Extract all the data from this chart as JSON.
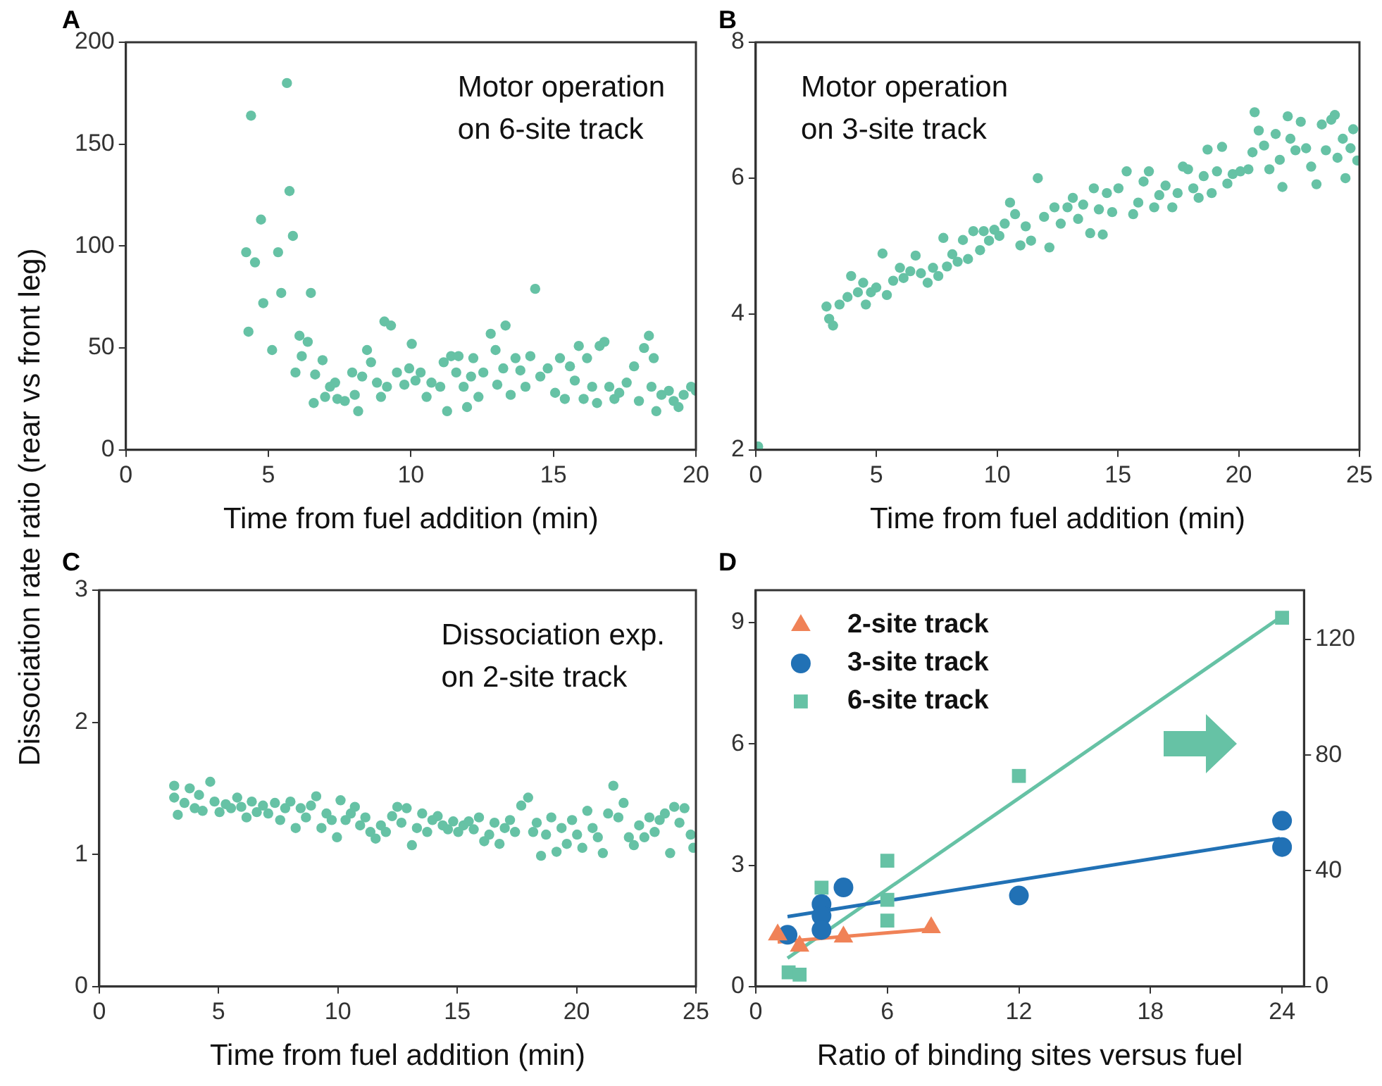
{
  "chart_data": [
    {
      "type": "scatter",
      "title": "A",
      "xlabel": "Time from fuel addition (min)",
      "ylabel": "Dissociation rate ratio (rear vs front leg)",
      "annotations": [
        "Motor operation\non 6-site track"
      ],
      "color": "#66c2a5",
      "marker": "circle",
      "xlim": [
        0,
        20
      ],
      "ylim": [
        0,
        200
      ],
      "xticks": [
        0,
        5,
        10,
        15,
        20
      ],
      "yticks": [
        0,
        50,
        100,
        150,
        200
      ],
      "x": [
        4.22,
        4.39,
        4.3,
        4.53,
        4.74,
        4.82,
        5.13,
        5.34,
        5.45,
        5.65,
        5.74,
        5.86,
        5.95,
        6.09,
        6.17,
        6.38,
        6.49,
        6.64,
        6.59,
        6.9,
        6.99,
        7.16,
        7.34,
        7.42,
        7.68,
        7.94,
        8.03,
        8.15,
        8.29,
        8.46,
        8.6,
        8.81,
        8.95,
        9.07,
        9.3,
        9.16,
        9.51,
        9.77,
        9.94,
        10.03,
        10.16,
        10.34,
        10.55,
        10.72,
        11.03,
        11.15,
        11.27,
        11.41,
        11.59,
        11.67,
        11.85,
        11.97,
        12.11,
        12.19,
        12.37,
        12.54,
        12.8,
        12.97,
        13.03,
        13.24,
        13.32,
        13.5,
        13.67,
        13.84,
        14.02,
        14.19,
        14.36,
        14.54,
        14.8,
        15.06,
        15.23,
        15.4,
        15.58,
        15.75,
        15.89,
        16.06,
        16.18,
        16.36,
        16.53,
        16.62,
        16.79,
        16.96,
        17.14,
        17.31,
        17.57,
        17.83,
        18.0,
        18.18,
        18.35,
        18.44,
        18.52,
        18.61,
        18.79,
        19.05,
        19.22,
        19.39,
        19.57,
        19.83,
        20.0
      ],
      "values": [
        97,
        164,
        58,
        92,
        113,
        72,
        49,
        97,
        77,
        180,
        127,
        105,
        38,
        56,
        46,
        53,
        77,
        37,
        23,
        44,
        26,
        31,
        33,
        25,
        24,
        38,
        27,
        19,
        36,
        49,
        43,
        33,
        26,
        63,
        61,
        31,
        38,
        32,
        40,
        52,
        34,
        38,
        26,
        33,
        31,
        43,
        19,
        46,
        38,
        46,
        31,
        21,
        36,
        45,
        26,
        38,
        57,
        49,
        32,
        40,
        61,
        27,
        45,
        39,
        31,
        46,
        79,
        36,
        40,
        28,
        45,
        25,
        41,
        34,
        51,
        25,
        45,
        31,
        23,
        51,
        53,
        31,
        25,
        28,
        33,
        41,
        24,
        50,
        56,
        31,
        45,
        19,
        27,
        29,
        24,
        21,
        27,
        31,
        29
      ]
    },
    {
      "type": "scatter",
      "title": "B",
      "xlabel": "Time from fuel addition (min)",
      "annotations": [
        "Motor operation\non 3-site track"
      ],
      "color": "#66c2a5",
      "marker": "circle",
      "xlim": [
        0,
        25
      ],
      "ylim": [
        2,
        8
      ],
      "xticks": [
        0,
        5,
        10,
        15,
        20,
        25
      ],
      "yticks": [
        2,
        4,
        6,
        8
      ],
      "x": [
        0.1,
        2.93,
        3.04,
        3.2,
        3.47,
        3.8,
        3.95,
        4.23,
        4.45,
        4.56,
        4.77,
        4.99,
        5.25,
        5.43,
        5.69,
        5.97,
        6.12,
        6.4,
        6.62,
        6.84,
        7.12,
        7.34,
        7.56,
        7.77,
        7.92,
        8.14,
        8.36,
        8.58,
        8.79,
        9.01,
        9.29,
        9.44,
        9.66,
        9.88,
        10.09,
        10.31,
        10.53,
        10.74,
        10.96,
        11.18,
        11.4,
        11.68,
        11.94,
        12.16,
        12.37,
        12.63,
        12.91,
        13.13,
        13.35,
        13.56,
        13.85,
        14.0,
        14.21,
        14.37,
        14.54,
        14.76,
        15.02,
        15.36,
        15.63,
        15.84,
        16.06,
        16.28,
        16.5,
        16.71,
        16.97,
        17.25,
        17.47,
        17.69,
        17.9,
        18.12,
        18.34,
        18.55,
        18.71,
        18.88,
        19.1,
        19.31,
        19.53,
        19.75,
        20.07,
        20.4,
        20.57,
        20.66,
        20.83,
        21.05,
        21.27,
        21.53,
        21.7,
        21.81,
        22.03,
        22.14,
        22.35,
        22.57,
        22.79,
        23.0,
        23.22,
        23.44,
        23.61,
        23.83,
        23.98,
        24.09,
        24.31,
        24.42,
        24.63,
        24.74,
        24.91
      ],
      "values": [
        2.05,
        4.11,
        3.93,
        3.83,
        4.14,
        4.25,
        4.56,
        4.32,
        4.46,
        4.14,
        4.32,
        4.39,
        4.89,
        4.28,
        4.49,
        4.68,
        4.53,
        4.63,
        4.86,
        4.6,
        4.46,
        4.68,
        4.56,
        5.12,
        4.7,
        4.88,
        4.77,
        5.09,
        4.81,
        5.22,
        4.94,
        5.22,
        5.08,
        5.24,
        5.15,
        5.33,
        5.64,
        5.47,
        5.01,
        5.29,
        5.08,
        6.0,
        5.43,
        4.98,
        5.57,
        5.33,
        5.57,
        5.71,
        5.4,
        5.61,
        5.19,
        5.85,
        5.54,
        5.17,
        5.78,
        5.5,
        5.85,
        6.1,
        5.47,
        5.64,
        5.95,
        6.1,
        5.57,
        5.75,
        5.89,
        5.57,
        5.78,
        6.17,
        6.13,
        5.85,
        5.71,
        6.03,
        6.42,
        5.78,
        6.1,
        6.46,
        5.92,
        6.06,
        6.1,
        6.13,
        6.38,
        6.97,
        6.7,
        6.48,
        6.13,
        6.65,
        6.27,
        5.87,
        6.91,
        6.58,
        6.41,
        6.83,
        6.44,
        6.17,
        5.91,
        6.79,
        6.41,
        6.86,
        6.93,
        6.3,
        6.58,
        6.0,
        6.44,
        6.72,
        6.26
      ]
    },
    {
      "type": "scatter",
      "title": "C",
      "xlabel": "Time from fuel addition (min)",
      "annotations": [
        "Dissociation exp.\non 2-site track"
      ],
      "color": "#66c2a5",
      "marker": "circle",
      "xlim": [
        0,
        25
      ],
      "ylim": [
        0,
        3
      ],
      "xticks": [
        0,
        5,
        10,
        15,
        20,
        25
      ],
      "yticks": [
        0,
        1,
        2,
        3
      ],
      "x": [
        3.14,
        3.14,
        3.29,
        3.57,
        3.79,
        4.0,
        4.18,
        4.33,
        4.65,
        4.83,
        5.04,
        5.3,
        5.52,
        5.78,
        5.95,
        6.17,
        6.39,
        6.6,
        6.86,
        7.08,
        7.36,
        7.58,
        7.79,
        8.01,
        8.23,
        8.44,
        8.66,
        8.87,
        9.09,
        9.31,
        9.52,
        9.74,
        9.96,
        10.11,
        10.32,
        10.54,
        10.71,
        10.93,
        11.15,
        11.36,
        11.58,
        11.8,
        12.01,
        12.27,
        12.49,
        12.66,
        12.88,
        13.1,
        13.31,
        13.53,
        13.74,
        13.96,
        14.18,
        14.39,
        14.61,
        14.83,
        15.04,
        15.26,
        15.48,
        15.69,
        15.91,
        16.13,
        16.34,
        16.56,
        16.77,
        16.99,
        17.21,
        17.42,
        17.68,
        17.97,
        18.18,
        18.33,
        18.51,
        18.72,
        18.94,
        19.16,
        19.37,
        19.59,
        19.81,
        20.02,
        20.24,
        20.45,
        20.67,
        20.89,
        21.1,
        21.32,
        21.54,
        21.75,
        21.97,
        22.19,
        22.4,
        22.62,
        22.84,
        23.05,
        23.27,
        23.48,
        23.7,
        23.92,
        24.09,
        24.31,
        24.52,
        24.78,
        24.89
      ],
      "values": [
        1.52,
        1.43,
        1.3,
        1.39,
        1.5,
        1.35,
        1.45,
        1.33,
        1.55,
        1.4,
        1.32,
        1.38,
        1.35,
        1.43,
        1.36,
        1.28,
        1.4,
        1.32,
        1.37,
        1.31,
        1.39,
        1.26,
        1.35,
        1.4,
        1.2,
        1.35,
        1.28,
        1.37,
        1.44,
        1.2,
        1.31,
        1.26,
        1.13,
        1.41,
        1.26,
        1.31,
        1.36,
        1.22,
        1.28,
        1.17,
        1.12,
        1.22,
        1.17,
        1.29,
        1.36,
        1.24,
        1.35,
        1.07,
        1.2,
        1.31,
        1.17,
        1.26,
        1.29,
        1.22,
        1.19,
        1.25,
        1.17,
        1.22,
        1.25,
        1.19,
        1.28,
        1.1,
        1.15,
        1.24,
        1.08,
        1.2,
        1.26,
        1.17,
        1.37,
        1.43,
        1.17,
        1.24,
        0.99,
        1.15,
        1.28,
        1.02,
        1.2,
        1.08,
        1.26,
        1.15,
        1.05,
        1.33,
        1.2,
        1.13,
        1.01,
        1.31,
        1.52,
        1.28,
        1.39,
        1.13,
        1.07,
        1.22,
        1.13,
        1.28,
        1.17,
        1.26,
        1.31,
        1.01,
        1.36,
        1.24,
        1.35,
        1.15,
        1.05
      ]
    },
    {
      "type": "scatter",
      "title": "D",
      "xlabel": "Ratio of binding sites versus fuel",
      "legend": "top left",
      "xlim": [
        0,
        25
      ],
      "ylim": [
        0,
        9.8
      ],
      "y2lim": [
        0,
        137
      ],
      "xticks": [
        0,
        6,
        12,
        18,
        24
      ],
      "yticks": [
        0,
        3,
        6,
        9
      ],
      "y2ticks": [
        0,
        40,
        80,
        120
      ],
      "series": [
        {
          "name": "2-site track",
          "color": "#f08257",
          "marker": "triangle",
          "x": [
            1,
            2,
            4,
            8
          ],
          "values": [
            1.28,
            1.0,
            1.23,
            1.46
          ]
        },
        {
          "name": "3-site track",
          "color": "#2171b5",
          "marker": "circle",
          "x": [
            1.45,
            3,
            3,
            3,
            4,
            12,
            24,
            24
          ],
          "values": [
            1.28,
            2.04,
            1.75,
            1.4,
            2.45,
            2.25,
            4.1,
            3.45
          ]
        },
        {
          "name": "6-site track",
          "color": "#66c2a5",
          "marker": "square",
          "axis": "y2",
          "x": [
            1.5,
            2,
            3,
            6,
            6,
            6,
            12,
            24
          ],
          "values": [
            4.9,
            4.1,
            34.2,
            43.5,
            30,
            22.8,
            72.8,
            127.5
          ]
        },
        {
          "type": "line",
          "color": "#f08257",
          "marker": "none",
          "x": [
            1,
            8
          ],
          "values": [
            1.1,
            1.42
          ]
        },
        {
          "type": "line",
          "color": "#2171b5",
          "marker": "none",
          "x": [
            1.45,
            23.9
          ],
          "values": [
            1.73,
            3.66
          ]
        },
        {
          "type": "line",
          "color": "#66c2a5",
          "marker": "none",
          "axis": "y2",
          "x": [
            1.45,
            23.9
          ],
          "values": [
            9.8,
            127.5
          ]
        }
      ]
    }
  ]
}
